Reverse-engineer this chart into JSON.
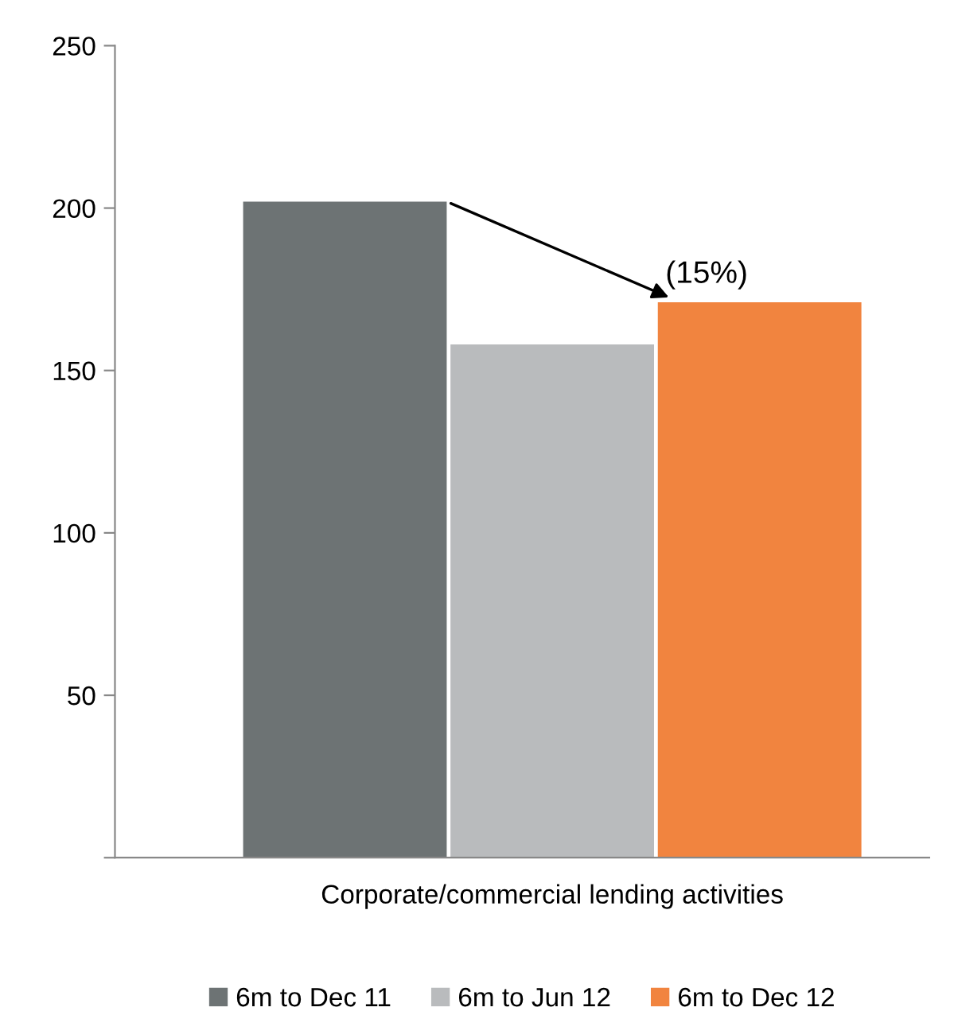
{
  "chart_data": {
    "type": "bar",
    "categories": [
      "Corporate/commercial lending activities"
    ],
    "series": [
      {
        "name": "6m to Dec 11",
        "color": "#6d7374",
        "values": [
          202
        ]
      },
      {
        "name": "6m to Jun 12",
        "color": "#b9bbbd",
        "values": [
          158
        ]
      },
      {
        "name": "6m to Dec 12",
        "color": "#f1843f",
        "values": [
          171
        ]
      }
    ],
    "ylim": [
      0,
      250
    ],
    "yticks": [
      {
        "value": 0,
        "label": null
      },
      50,
      100,
      150,
      200,
      250
    ],
    "annotations": [
      "(15%)"
    ],
    "grid": false,
    "legend": "bottom"
  }
}
